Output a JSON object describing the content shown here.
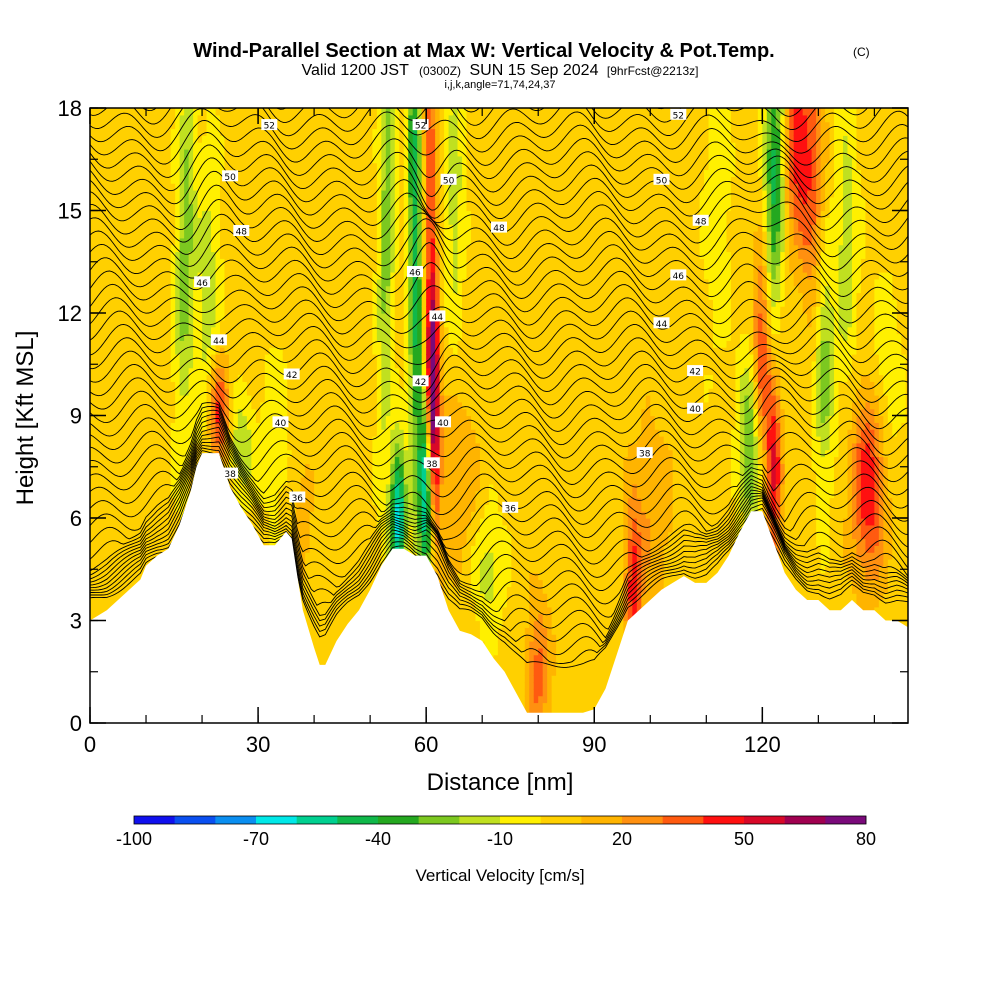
{
  "chart_data": {
    "type": "heatmap",
    "title": "Wind-Parallel Section at Max W: Vertical Velocity & Pot.Temp.",
    "title_mark": "(C)",
    "subtitle_main": "Valid 1200 JST",
    "subtitle_utc": "(0300Z)",
    "subtitle_date": "SUN 15 Sep 2024",
    "subtitle_fcst": "[9hrFcst@2213z]",
    "subtitle_params": "i,j,k,angle=71,74,24,37",
    "xlabel": "Distance [nm]",
    "ylabel": "Height [Kft MSL]",
    "xlim": [
      0,
      146
    ],
    "ylim": [
      0,
      18
    ],
    "x_ticks": [
      0,
      30,
      60,
      90,
      120
    ],
    "x_tick_labels": [
      "0",
      "30",
      "60",
      "90",
      "120"
    ],
    "y_ticks": [
      0,
      3,
      6,
      9,
      12,
      15,
      18
    ],
    "y_tick_labels": [
      "0",
      "3",
      "6",
      "9",
      "12",
      "15",
      "18"
    ],
    "colorbar": {
      "label": "Vertical Velocity [cm/s]",
      "min": -100,
      "max": 80,
      "levels": [
        -100,
        -90,
        -80,
        -70,
        -60,
        -50,
        -40,
        -30,
        -20,
        -10,
        0,
        10,
        20,
        30,
        40,
        50,
        60,
        70,
        80
      ],
      "tick_values": [
        -100,
        -70,
        -40,
        -10,
        20,
        50,
        80
      ],
      "tick_labels": [
        "-100",
        "-70",
        "-40",
        "-10",
        "20",
        "50",
        "80"
      ],
      "colors": [
        "#1010ee",
        "#0a4ff0",
        "#0a8ef0",
        "#00e8e8",
        "#00d090",
        "#10b84a",
        "#24a820",
        "#7cc820",
        "#c0e020",
        "#fff000",
        "#ffd000",
        "#ffb400",
        "#ff9010",
        "#ff5a10",
        "#ff1010",
        "#d80828",
        "#a00050",
        "#7a0a7a"
      ]
    },
    "terrain_kft": [
      {
        "x": 0,
        "y": 3.0
      },
      {
        "x": 3,
        "y": 3.3
      },
      {
        "x": 5,
        "y": 3.6
      },
      {
        "x": 7,
        "y": 3.9
      },
      {
        "x": 9,
        "y": 4.2
      },
      {
        "x": 10,
        "y": 4.6
      },
      {
        "x": 12,
        "y": 4.9
      },
      {
        "x": 14,
        "y": 5.1
      },
      {
        "x": 16,
        "y": 5.8
      },
      {
        "x": 18,
        "y": 6.8
      },
      {
        "x": 19,
        "y": 7.5
      },
      {
        "x": 20,
        "y": 7.9
      },
      {
        "x": 23,
        "y": 7.9
      },
      {
        "x": 25,
        "y": 6.9
      },
      {
        "x": 27,
        "y": 6.3
      },
      {
        "x": 29,
        "y": 5.8
      },
      {
        "x": 31,
        "y": 5.2
      },
      {
        "x": 33,
        "y": 5.2
      },
      {
        "x": 35,
        "y": 5.6
      },
      {
        "x": 36,
        "y": 5.4
      },
      {
        "x": 37,
        "y": 4.3
      },
      {
        "x": 38,
        "y": 3.3
      },
      {
        "x": 40,
        "y": 2.2
      },
      {
        "x": 41,
        "y": 1.7
      },
      {
        "x": 42,
        "y": 1.7
      },
      {
        "x": 44,
        "y": 2.4
      },
      {
        "x": 46,
        "y": 2.9
      },
      {
        "x": 48,
        "y": 3.3
      },
      {
        "x": 50,
        "y": 3.9
      },
      {
        "x": 52,
        "y": 4.6
      },
      {
        "x": 54,
        "y": 5.1
      },
      {
        "x": 56,
        "y": 5.1
      },
      {
        "x": 58,
        "y": 4.9
      },
      {
        "x": 60,
        "y": 4.9
      },
      {
        "x": 62,
        "y": 4.3
      },
      {
        "x": 64,
        "y": 3.3
      },
      {
        "x": 66,
        "y": 2.7
      },
      {
        "x": 68,
        "y": 2.6
      },
      {
        "x": 70,
        "y": 2.4
      },
      {
        "x": 72,
        "y": 1.9
      },
      {
        "x": 74,
        "y": 1.5
      },
      {
        "x": 76,
        "y": 0.9
      },
      {
        "x": 78,
        "y": 0.3
      },
      {
        "x": 82,
        "y": 0.3
      },
      {
        "x": 86,
        "y": 0.3
      },
      {
        "x": 88,
        "y": 0.3
      },
      {
        "x": 90,
        "y": 0.4
      },
      {
        "x": 92,
        "y": 1.0
      },
      {
        "x": 94,
        "y": 2.0
      },
      {
        "x": 96,
        "y": 3.0
      },
      {
        "x": 98,
        "y": 3.3
      },
      {
        "x": 100,
        "y": 3.6
      },
      {
        "x": 102,
        "y": 3.9
      },
      {
        "x": 104,
        "y": 4.1
      },
      {
        "x": 106,
        "y": 4.3
      },
      {
        "x": 108,
        "y": 4.1
      },
      {
        "x": 110,
        "y": 4.1
      },
      {
        "x": 112,
        "y": 4.4
      },
      {
        "x": 114,
        "y": 4.9
      },
      {
        "x": 116,
        "y": 5.6
      },
      {
        "x": 118,
        "y": 6.2
      },
      {
        "x": 120,
        "y": 6.2
      },
      {
        "x": 122,
        "y": 5.3
      },
      {
        "x": 124,
        "y": 4.4
      },
      {
        "x": 126,
        "y": 3.9
      },
      {
        "x": 128,
        "y": 3.6
      },
      {
        "x": 130,
        "y": 3.6
      },
      {
        "x": 132,
        "y": 3.3
      },
      {
        "x": 134,
        "y": 3.3
      },
      {
        "x": 136,
        "y": 3.6
      },
      {
        "x": 138,
        "y": 3.3
      },
      {
        "x": 140,
        "y": 3.3
      },
      {
        "x": 142,
        "y": 3.0
      },
      {
        "x": 144,
        "y": 3.0
      },
      {
        "x": 146,
        "y": 2.8
      }
    ],
    "w_features_cm_s": [
      {
        "x": 17,
        "y": 14.0,
        "w": -30,
        "sx": 1.2,
        "sy": 4.0,
        "tilt": 0.1
      },
      {
        "x": 21,
        "y": 12.5,
        "w": -20,
        "sx": 1.5,
        "sy": 3.0,
        "tilt": 0.1
      },
      {
        "x": 23,
        "y": 9.0,
        "w": 40,
        "sx": 1.3,
        "sy": 1.2,
        "tilt": 0.0
      },
      {
        "x": 27,
        "y": 8.0,
        "w": -25,
        "sx": 1.5,
        "sy": 1.0,
        "tilt": 0.0
      },
      {
        "x": 33,
        "y": 8.5,
        "w": -10,
        "sx": 2.0,
        "sy": 2.0,
        "tilt": 0.0
      },
      {
        "x": 38,
        "y": 6.0,
        "w": 10,
        "sx": 1.5,
        "sy": 1.5,
        "tilt": 0.0
      },
      {
        "x": 53,
        "y": 15.0,
        "w": -30,
        "sx": 1.0,
        "sy": 5.0,
        "tilt": 0.1
      },
      {
        "x": 55,
        "y": 6.0,
        "w": -70,
        "sx": 1.0,
        "sy": 1.5,
        "tilt": 0.0
      },
      {
        "x": 58,
        "y": 14.0,
        "w": -50,
        "sx": 0.9,
        "sy": 6.0,
        "tilt": -0.05
      },
      {
        "x": 60,
        "y": 7.0,
        "w": -70,
        "sx": 0.8,
        "sy": 2.0,
        "tilt": 0.0
      },
      {
        "x": 61,
        "y": 13.0,
        "w": 40,
        "sx": 0.8,
        "sy": 6.0,
        "tilt": -0.08
      },
      {
        "x": 61,
        "y": 9.5,
        "w": 60,
        "sx": 0.9,
        "sy": 1.8,
        "tilt": 0.0
      },
      {
        "x": 65,
        "y": 15.5,
        "w": -20,
        "sx": 1.2,
        "sy": 3.0,
        "tilt": 0.0
      },
      {
        "x": 71,
        "y": 4.5,
        "w": -20,
        "sx": 2.0,
        "sy": 1.2,
        "tilt": 0.0
      },
      {
        "x": 66,
        "y": 7.0,
        "w": 15,
        "sx": 2.5,
        "sy": 2.0,
        "tilt": 0.0
      },
      {
        "x": 80,
        "y": 1.5,
        "w": 30,
        "sx": 1.5,
        "sy": 1.5,
        "tilt": 0.0
      },
      {
        "x": 97,
        "y": 4.0,
        "w": 40,
        "sx": 1.0,
        "sy": 1.5,
        "tilt": 0.0
      },
      {
        "x": 100,
        "y": 6.0,
        "w": 15,
        "sx": 3.0,
        "sy": 2.0,
        "tilt": 0.0
      },
      {
        "x": 112,
        "y": 15.0,
        "w": -10,
        "sx": 2.0,
        "sy": 3.0,
        "tilt": 0.0
      },
      {
        "x": 118,
        "y": 8.0,
        "w": -40,
        "sx": 1.5,
        "sy": 2.0,
        "tilt": 0.0
      },
      {
        "x": 120,
        "y": 11.0,
        "w": 50,
        "sx": 1.2,
        "sy": 2.5,
        "tilt": 0.1
      },
      {
        "x": 122,
        "y": 7.5,
        "w": 50,
        "sx": 1.0,
        "sy": 2.0,
        "tilt": 0.0
      },
      {
        "x": 122,
        "y": 15.5,
        "w": -50,
        "sx": 1.3,
        "sy": 3.5,
        "tilt": 0.15
      },
      {
        "x": 126,
        "y": 17.0,
        "w": 40,
        "sx": 1.5,
        "sy": 2.0,
        "tilt": 0.0
      },
      {
        "x": 129,
        "y": 16.0,
        "w": 30,
        "sx": 1.5,
        "sy": 3.0,
        "tilt": 0.0
      },
      {
        "x": 131,
        "y": 10.5,
        "w": -30,
        "sx": 1.2,
        "sy": 2.5,
        "tilt": 0.0
      },
      {
        "x": 135,
        "y": 14.0,
        "w": -20,
        "sx": 1.5,
        "sy": 3.0,
        "tilt": 0.0
      },
      {
        "x": 139,
        "y": 7.0,
        "w": 45,
        "sx": 2.2,
        "sy": 2.0,
        "tilt": 0.0
      },
      {
        "x": 142,
        "y": 10.0,
        "w": -15,
        "sx": 2.0,
        "sy": 2.0,
        "tilt": 0.0
      }
    ],
    "theta_contour_labels": [
      {
        "x": 32,
        "y": 17.5,
        "text": "52"
      },
      {
        "x": 59,
        "y": 17.5,
        "text": "52"
      },
      {
        "x": 105,
        "y": 17.8,
        "text": "52"
      },
      {
        "x": 25,
        "y": 16.0,
        "text": "50"
      },
      {
        "x": 64,
        "y": 15.9,
        "text": "50"
      },
      {
        "x": 102,
        "y": 15.9,
        "text": "50"
      },
      {
        "x": 27,
        "y": 14.4,
        "text": "48"
      },
      {
        "x": 73,
        "y": 14.5,
        "text": "48"
      },
      {
        "x": 109,
        "y": 14.7,
        "text": "48"
      },
      {
        "x": 20,
        "y": 12.9,
        "text": "46"
      },
      {
        "x": 58,
        "y": 13.2,
        "text": "46"
      },
      {
        "x": 105,
        "y": 13.1,
        "text": "46"
      },
      {
        "x": 23,
        "y": 11.2,
        "text": "44"
      },
      {
        "x": 62,
        "y": 11.9,
        "text": "44"
      },
      {
        "x": 102,
        "y": 11.7,
        "text": "44"
      },
      {
        "x": 36,
        "y": 10.2,
        "text": "42"
      },
      {
        "x": 59,
        "y": 10.0,
        "text": "42"
      },
      {
        "x": 108,
        "y": 10.3,
        "text": "42"
      },
      {
        "x": 34,
        "y": 8.8,
        "text": "40"
      },
      {
        "x": 63,
        "y": 8.8,
        "text": "40"
      },
      {
        "x": 108,
        "y": 9.2,
        "text": "40"
      },
      {
        "x": 25,
        "y": 7.3,
        "text": "38"
      },
      {
        "x": 61,
        "y": 7.6,
        "text": "38"
      },
      {
        "x": 99,
        "y": 7.9,
        "text": "38"
      },
      {
        "x": 37,
        "y": 6.6,
        "text": "36"
      },
      {
        "x": 75,
        "y": 6.3,
        "text": "36"
      }
    ]
  }
}
